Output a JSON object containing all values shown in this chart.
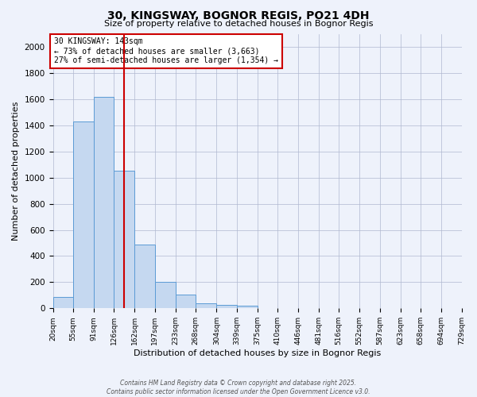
{
  "title": "30, KINGSWAY, BOGNOR REGIS, PO21 4DH",
  "subtitle": "Size of property relative to detached houses in Bognor Regis",
  "xlabel": "Distribution of detached houses by size in Bognor Regis",
  "ylabel": "Number of detached properties",
  "bins": [
    "20sqm",
    "55sqm",
    "91sqm",
    "126sqm",
    "162sqm",
    "197sqm",
    "233sqm",
    "268sqm",
    "304sqm",
    "339sqm",
    "375sqm",
    "410sqm",
    "446sqm",
    "481sqm",
    "516sqm",
    "552sqm",
    "587sqm",
    "623sqm",
    "658sqm",
    "694sqm",
    "729sqm"
  ],
  "bin_edges": [
    20,
    55,
    91,
    126,
    162,
    197,
    233,
    268,
    304,
    339,
    375,
    410,
    446,
    481,
    516,
    552,
    587,
    623,
    658,
    694,
    729
  ],
  "counts": [
    85,
    1430,
    1620,
    1055,
    490,
    205,
    105,
    40,
    25,
    20,
    0,
    0,
    0,
    0,
    0,
    0,
    0,
    0,
    0,
    0
  ],
  "bar_color": "#c5d8f0",
  "bar_edge_color": "#5b9bd5",
  "property_size": 143,
  "vline_color": "#cc0000",
  "annotation_box_color": "#cc0000",
  "annotation_text": "30 KINGSWAY: 143sqm\n← 73% of detached houses are smaller (3,663)\n27% of semi-detached houses are larger (1,354) →",
  "footer1": "Contains HM Land Registry data © Crown copyright and database right 2025.",
  "footer2": "Contains public sector information licensed under the Open Government Licence v3.0.",
  "bg_color": "#eef2fb",
  "grid_color": "#b0b8d0",
  "ylim": [
    0,
    2100
  ],
  "yticks": [
    0,
    200,
    400,
    600,
    800,
    1000,
    1200,
    1400,
    1600,
    1800,
    2000
  ]
}
